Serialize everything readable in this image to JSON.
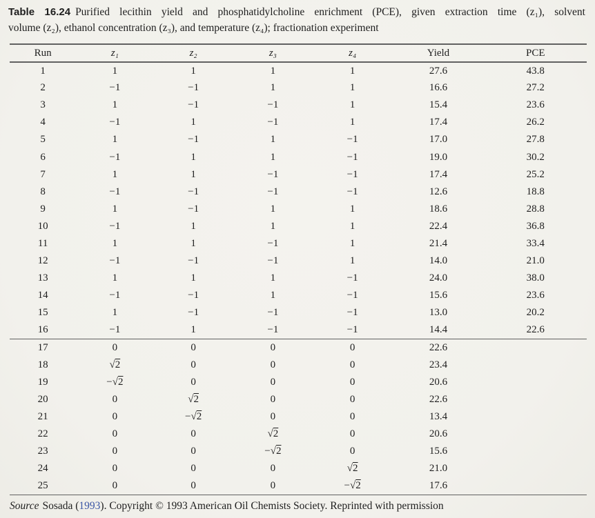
{
  "colors": {
    "paper": "#f2f1ec",
    "ink": "#1e1e1e",
    "citation_link": "#3a55a5",
    "rule": "#606060"
  },
  "caption": {
    "label": "Table 16.24",
    "line1": "Purified lecithin yield and phosphatidylcholine enrichment (PCE), given extraction time (z₁), solvent",
    "line2": "volume (z₂), ethanol concentration (z₃), and temperature (z₄); fractionation experiment"
  },
  "table": {
    "columns": [
      {
        "label": "Run",
        "math": false
      },
      {
        "label": "z₁",
        "math": true
      },
      {
        "label": "z₂",
        "math": true
      },
      {
        "label": "z₃",
        "math": true
      },
      {
        "label": "z₄",
        "math": true
      },
      {
        "label": "Yield",
        "math": false
      },
      {
        "label": "PCE",
        "math": false
      }
    ],
    "group_break_after": 16,
    "rows": [
      [
        "1",
        "1",
        "1",
        "1",
        "1",
        "27.6",
        "43.8"
      ],
      [
        "2",
        "−1",
        "−1",
        "1",
        "1",
        "16.6",
        "27.2"
      ],
      [
        "3",
        "1",
        "−1",
        "−1",
        "1",
        "15.4",
        "23.6"
      ],
      [
        "4",
        "−1",
        "1",
        "−1",
        "1",
        "17.4",
        "26.2"
      ],
      [
        "5",
        "1",
        "−1",
        "1",
        "−1",
        "17.0",
        "27.8"
      ],
      [
        "6",
        "−1",
        "1",
        "1",
        "−1",
        "19.0",
        "30.2"
      ],
      [
        "7",
        "1",
        "1",
        "−1",
        "−1",
        "17.4",
        "25.2"
      ],
      [
        "8",
        "−1",
        "−1",
        "−1",
        "−1",
        "12.6",
        "18.8"
      ],
      [
        "9",
        "1",
        "−1",
        "1",
        "1",
        "18.6",
        "28.8"
      ],
      [
        "10",
        "−1",
        "1",
        "1",
        "1",
        "22.4",
        "36.8"
      ],
      [
        "11",
        "1",
        "1",
        "−1",
        "1",
        "21.4",
        "33.4"
      ],
      [
        "12",
        "−1",
        "−1",
        "−1",
        "1",
        "14.0",
        "21.0"
      ],
      [
        "13",
        "1",
        "1",
        "1",
        "−1",
        "24.0",
        "38.0"
      ],
      [
        "14",
        "−1",
        "−1",
        "1",
        "−1",
        "15.6",
        "23.6"
      ],
      [
        "15",
        "1",
        "−1",
        "−1",
        "−1",
        "13.0",
        "20.2"
      ],
      [
        "16",
        "−1",
        "1",
        "−1",
        "−1",
        "14.4",
        "22.6"
      ],
      [
        "17",
        "0",
        "0",
        "0",
        "0",
        "22.6",
        ""
      ],
      [
        "18",
        "√2",
        "0",
        "0",
        "0",
        "23.4",
        ""
      ],
      [
        "19",
        "−√2",
        "0",
        "0",
        "0",
        "20.6",
        ""
      ],
      [
        "20",
        "0",
        "√2",
        "0",
        "0",
        "22.6",
        ""
      ],
      [
        "21",
        "0",
        "−√2",
        "0",
        "0",
        "13.4",
        ""
      ],
      [
        "22",
        "0",
        "0",
        "√2",
        "0",
        "20.6",
        ""
      ],
      [
        "23",
        "0",
        "0",
        "−√2",
        "0",
        "15.6",
        ""
      ],
      [
        "24",
        "0",
        "0",
        "0",
        "√2",
        "21.0",
        ""
      ],
      [
        "25",
        "0",
        "0",
        "0",
        "−√2",
        "17.6",
        ""
      ]
    ]
  },
  "footer": {
    "source_label": "Source",
    "parts": [
      {
        "text": "Sosada (",
        "link": false
      },
      {
        "text": "1993",
        "link": true
      },
      {
        "text": "). Copyright © 1993 American Oil Chemists Society. Reprinted with permission",
        "link": false
      }
    ]
  }
}
